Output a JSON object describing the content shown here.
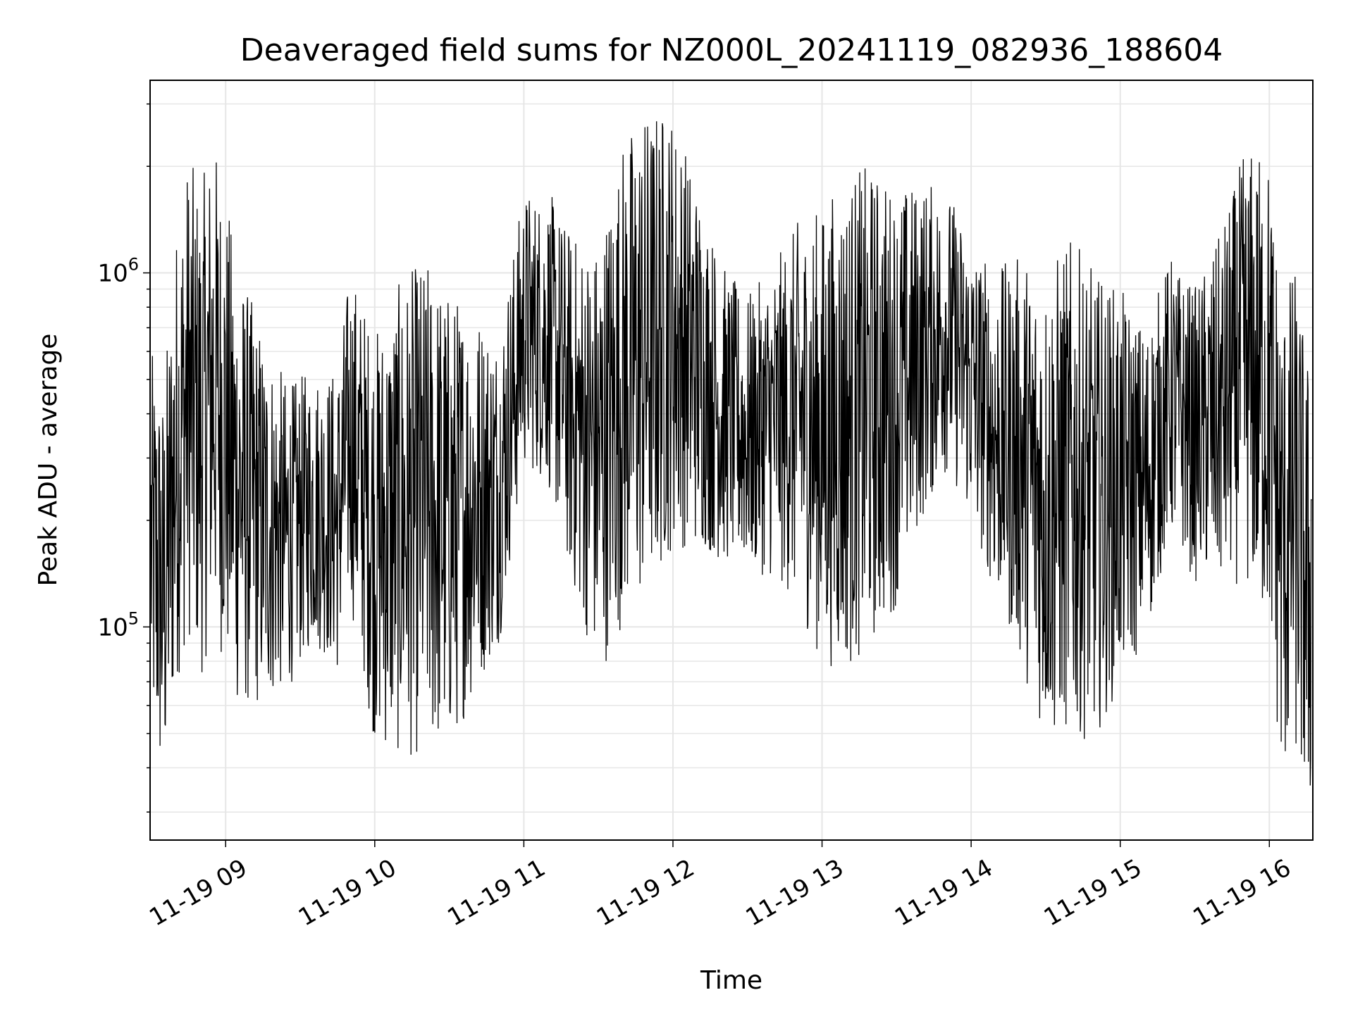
{
  "chart_data": {
    "type": "line",
    "title": "Deaveraged field sums for NZ000L_20241119_082936_188604",
    "xlabel": "Time",
    "ylabel": "Peak ADU - average",
    "yscale": "log",
    "xlim": [
      "2024-11-19T08:29:36",
      "2024-11-19T16:17:30"
    ],
    "ylim": [
      25000,
      3500000
    ],
    "x_ticks": [
      {
        "value": "2024-11-19T09:00",
        "label": "11-19 09"
      },
      {
        "value": "2024-11-19T10:00",
        "label": "11-19 10"
      },
      {
        "value": "2024-11-19T11:00",
        "label": "11-19 11"
      },
      {
        "value": "2024-11-19T12:00",
        "label": "11-19 12"
      },
      {
        "value": "2024-11-19T13:00",
        "label": "11-19 13"
      },
      {
        "value": "2024-11-19T14:00",
        "label": "11-19 14"
      },
      {
        "value": "2024-11-19T15:00",
        "label": "11-19 15"
      },
      {
        "value": "2024-11-19T16:00",
        "label": "11-19 16"
      }
    ],
    "y_ticks": [
      {
        "value": 100000,
        "base": "10",
        "exp": "5"
      },
      {
        "value": 1000000,
        "base": "10",
        "exp": "6"
      }
    ],
    "grid": true,
    "line_color": "#000000",
    "series": [
      {
        "x": [
          "2024-11-19T08:30",
          "2024-11-19T08:35",
          "2024-11-19T08:40",
          "2024-11-19T08:45",
          "2024-11-19T08:50",
          "2024-11-19T08:55",
          "2024-11-19T09:05",
          "2024-11-19T09:15",
          "2024-11-19T09:25",
          "2024-11-19T09:35",
          "2024-11-19T09:45",
          "2024-11-19T09:50",
          "2024-11-19T10:00",
          "2024-11-19T10:10",
          "2024-11-19T10:20",
          "2024-11-19T10:30",
          "2024-11-19T10:40",
          "2024-11-19T10:50",
          "2024-11-19T11:00",
          "2024-11-19T11:10",
          "2024-11-19T11:20",
          "2024-11-19T11:30",
          "2024-11-19T11:40",
          "2024-11-19T11:50",
          "2024-11-19T12:00",
          "2024-11-19T12:10",
          "2024-11-19T12:20",
          "2024-11-19T12:30",
          "2024-11-19T12:40",
          "2024-11-19T12:50",
          "2024-11-19T13:00",
          "2024-11-19T13:10",
          "2024-11-19T13:20",
          "2024-11-19T13:30",
          "2024-11-19T13:40",
          "2024-11-19T13:50",
          "2024-11-19T14:00",
          "2024-11-19T14:10",
          "2024-11-19T14:20",
          "2024-11-19T14:30",
          "2024-11-19T14:40",
          "2024-11-19T14:50",
          "2024-11-19T15:00",
          "2024-11-19T15:10",
          "2024-11-19T15:20",
          "2024-11-19T15:30",
          "2024-11-19T15:40",
          "2024-11-19T15:50",
          "2024-11-19T16:00",
          "2024-11-19T16:05",
          "2024-11-19T16:10",
          "2024-11-19T16:15"
        ],
        "y": [
          170000,
          120000,
          300000,
          450000,
          350000,
          500000,
          250000,
          200000,
          180000,
          220000,
          200000,
          350000,
          180000,
          200000,
          220000,
          200000,
          230000,
          250000,
          700000,
          650000,
          400000,
          300000,
          500000,
          600000,
          700000,
          550000,
          400000,
          350000,
          380000,
          400000,
          350000,
          380000,
          420000,
          450000,
          600000,
          700000,
          500000,
          350000,
          300000,
          220000,
          250000,
          220000,
          250000,
          250000,
          450000,
          350000,
          400000,
          550000,
          450000,
          170000,
          220000,
          130000
        ]
      }
    ]
  }
}
